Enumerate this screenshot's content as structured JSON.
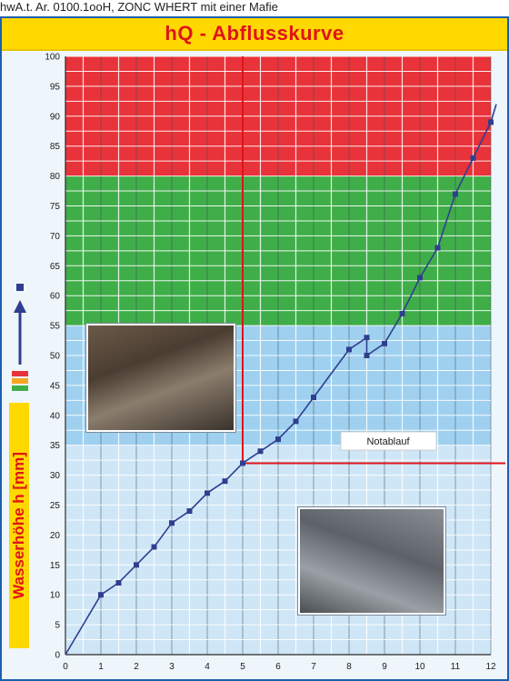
{
  "caption": "hwA.t. Ar. 0100.1ooH, ZONC WHERT mit einer Mafie",
  "chart_data": {
    "type": "line",
    "title": "hQ - Abflusskurve",
    "xlabel": "",
    "ylabel": "Wasserhöhe h [mm]",
    "xlim": [
      0,
      12
    ],
    "ylim": [
      0,
      100
    ],
    "x_ticks": [
      0,
      1,
      2,
      3,
      4,
      5,
      6,
      7,
      8,
      9,
      10,
      11,
      12
    ],
    "y_ticks": [
      0,
      5,
      10,
      15,
      20,
      25,
      30,
      35,
      40,
      45,
      50,
      55,
      60,
      65,
      70,
      75,
      80,
      85,
      90,
      95,
      100
    ],
    "grid": true,
    "series": [
      {
        "x": [
          0,
          1,
          1.5,
          2,
          2.5,
          3,
          3.5,
          4,
          4.5,
          5,
          5.5,
          6,
          6.5,
          7,
          8,
          8.5,
          8.5,
          9,
          9.5,
          10,
          10.5,
          11,
          11.5,
          12
        ],
        "y": [
          0,
          10,
          12,
          15,
          18,
          22,
          24,
          27,
          29,
          32,
          34,
          36,
          39,
          43,
          51,
          53,
          50,
          52,
          57,
          63,
          68,
          77,
          83,
          89
        ],
        "end_value": 92,
        "color": "#2f3f8f"
      }
    ],
    "bands": [
      {
        "from": 80,
        "to": 100,
        "color": "#e8333a"
      },
      {
        "from": 55,
        "to": 80,
        "color": "#3fae49"
      },
      {
        "from": 35,
        "to": 55,
        "color": "#9fd0ef"
      },
      {
        "from": 0,
        "to": 35,
        "color": "#cfe6f7"
      }
    ],
    "annotations": [
      {
        "text": "Notablauf",
        "x": 5,
        "y": 32,
        "color": "#e0131a"
      }
    ]
  },
  "legend": {
    "swatch_colors": [
      "#e8333a",
      "#f5a623",
      "#3fae49"
    ],
    "arrow_color": "#2f3f8f",
    "photos": [
      "photo of weir insert",
      "photo of grating outlet"
    ]
  }
}
